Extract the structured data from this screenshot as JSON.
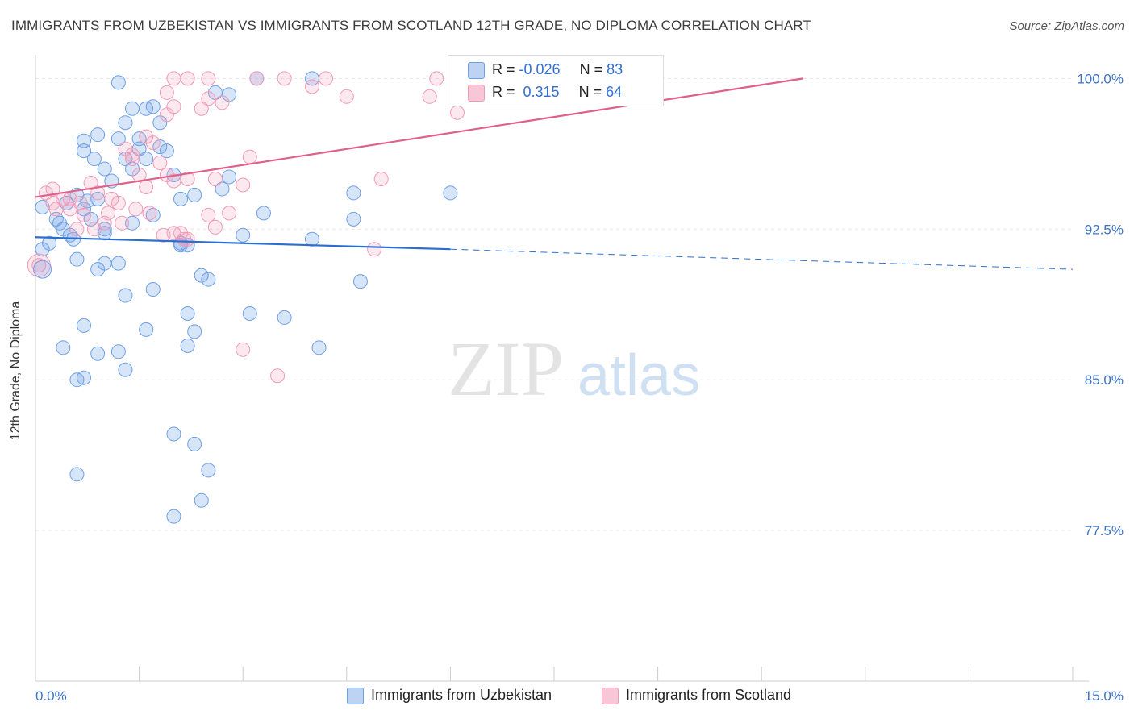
{
  "header": {
    "title": "IMMIGRANTS FROM UZBEKISTAN VS IMMIGRANTS FROM SCOTLAND 12TH GRADE, NO DIPLOMA CORRELATION CHART",
    "source": "Source: ZipAtlas.com"
  },
  "watermark": {
    "zip": "ZIP",
    "atlas": "atlas"
  },
  "legend": {
    "rows": [
      {
        "r_label": "R = ",
        "r_value": "-0.026",
        "n_label": "N = ",
        "n_value": "83"
      },
      {
        "r_label": "R = ",
        "r_value": " 0.315",
        "n_label": "N = ",
        "n_value": "64"
      }
    ]
  },
  "chart_data": {
    "type": "scatter",
    "xlabel": "",
    "ylabel": "12th Grade, No Diploma",
    "xlim": [
      0,
      15
    ],
    "ylim": [
      70,
      101.5
    ],
    "x_tick_labels": [
      "0.0%",
      "15.0%"
    ],
    "y_ticks": [
      77.5,
      85.0,
      92.5,
      100.0
    ],
    "y_tick_labels": [
      "77.5%",
      "85.0%",
      "92.5%",
      "100.0%"
    ],
    "grid": true,
    "legend_position": "top-center",
    "colors": {
      "uzbekistan": "#6fa0e6",
      "scotland": "#f09ab8",
      "uzbekistan_line": "#2a6fd0",
      "scotland_line": "#e0608a"
    },
    "series": [
      {
        "name": "Immigrants from Uzbekistan",
        "r": -0.026,
        "n": 83,
        "trend": {
          "x": [
            0,
            6.0
          ],
          "y": [
            92.1,
            91.5
          ],
          "dashed_to": [
            15,
            90.5
          ]
        },
        "points": [
          [
            0.1,
            93.6
          ],
          [
            0.2,
            91.8
          ],
          [
            0.3,
            93.0
          ],
          [
            0.4,
            92.5
          ],
          [
            0.5,
            92.2
          ],
          [
            0.6,
            94.2
          ],
          [
            0.7,
            93.5
          ],
          [
            0.8,
            93.0
          ],
          [
            0.9,
            94.0
          ],
          [
            1.0,
            92.5
          ],
          [
            0.1,
            91.5
          ],
          [
            0.35,
            92.8
          ],
          [
            0.45,
            93.8
          ],
          [
            0.55,
            92.0
          ],
          [
            0.75,
            93.9
          ],
          [
            0.85,
            96.0
          ],
          [
            1.0,
            95.5
          ],
          [
            1.1,
            94.9
          ],
          [
            1.2,
            97.0
          ],
          [
            1.3,
            96.0
          ],
          [
            1.4,
            95.5
          ],
          [
            1.5,
            96.5
          ],
          [
            1.6,
            96.0
          ],
          [
            1.7,
            98.6
          ],
          [
            1.8,
            96.6
          ],
          [
            1.9,
            96.4
          ],
          [
            2.0,
            95.2
          ],
          [
            2.1,
            94.0
          ],
          [
            1.3,
            97.8
          ],
          [
            1.4,
            98.5
          ],
          [
            1.5,
            97.0
          ],
          [
            1.2,
            99.8
          ],
          [
            1.6,
            98.5
          ],
          [
            2.3,
            94.2
          ],
          [
            0.7,
            96.9
          ],
          [
            0.7,
            96.4
          ],
          [
            0.9,
            97.2
          ],
          [
            1.8,
            97.8
          ],
          [
            2.6,
            99.3
          ],
          [
            2.8,
            99.2
          ],
          [
            3.2,
            100.0
          ],
          [
            4.0,
            100.0
          ],
          [
            2.7,
            94.5
          ],
          [
            2.8,
            95.1
          ],
          [
            3.3,
            93.3
          ],
          [
            4.6,
            94.3
          ],
          [
            6.0,
            94.3
          ],
          [
            3.0,
            92.2
          ],
          [
            4.0,
            92.0
          ],
          [
            4.6,
            93.0
          ],
          [
            1.0,
            92.3
          ],
          [
            1.4,
            92.8
          ],
          [
            1.7,
            93.2
          ],
          [
            2.1,
            91.8
          ],
          [
            2.1,
            91.7
          ],
          [
            2.2,
            91.7
          ],
          [
            0.6,
            91.0
          ],
          [
            0.9,
            90.5
          ],
          [
            1.0,
            90.8
          ],
          [
            1.2,
            90.8
          ],
          [
            2.4,
            90.2
          ],
          [
            2.5,
            90.0
          ],
          [
            4.7,
            89.9
          ],
          [
            1.3,
            89.2
          ],
          [
            1.7,
            89.5
          ],
          [
            2.2,
            88.3
          ],
          [
            3.1,
            88.3
          ],
          [
            3.6,
            88.1
          ],
          [
            0.7,
            87.7
          ],
          [
            1.6,
            87.5
          ],
          [
            2.3,
            87.4
          ],
          [
            0.4,
            86.6
          ],
          [
            0.9,
            86.3
          ],
          [
            1.2,
            86.4
          ],
          [
            2.2,
            86.7
          ],
          [
            4.1,
            86.6
          ],
          [
            1.3,
            85.5
          ],
          [
            0.6,
            85.0
          ],
          [
            0.7,
            85.1
          ],
          [
            2.0,
            82.3
          ],
          [
            2.3,
            81.8
          ],
          [
            0.6,
            80.3
          ],
          [
            2.5,
            80.5
          ],
          [
            2.4,
            79.0
          ],
          [
            2.0,
            78.2
          ]
        ]
      },
      {
        "name": "Immigrants from Scotland",
        "r": 0.315,
        "n": 64,
        "trend": {
          "x": [
            0,
            11.1
          ],
          "y": [
            94.1,
            100.0
          ]
        },
        "points": [
          [
            0.05,
            90.7
          ],
          [
            0.15,
            94.3
          ],
          [
            0.25,
            93.8
          ],
          [
            0.3,
            93.5
          ],
          [
            0.4,
            94.0
          ],
          [
            0.5,
            93.5
          ],
          [
            0.6,
            92.5
          ],
          [
            0.7,
            93.2
          ],
          [
            0.8,
            94.8
          ],
          [
            0.9,
            94.3
          ],
          [
            1.0,
            92.8
          ],
          [
            1.1,
            94.0
          ],
          [
            1.2,
            93.8
          ],
          [
            1.3,
            96.5
          ],
          [
            1.4,
            96.0
          ],
          [
            1.5,
            95.2
          ],
          [
            1.6,
            94.6
          ],
          [
            1.7,
            96.8
          ],
          [
            1.8,
            95.8
          ],
          [
            1.9,
            95.2
          ],
          [
            2.0,
            94.9
          ],
          [
            0.25,
            94.5
          ],
          [
            0.5,
            94.0
          ],
          [
            0.65,
            93.8
          ],
          [
            0.85,
            92.5
          ],
          [
            1.05,
            93.3
          ],
          [
            1.25,
            92.8
          ],
          [
            1.45,
            93.5
          ],
          [
            1.65,
            93.3
          ],
          [
            1.85,
            92.2
          ],
          [
            2.0,
            92.3
          ],
          [
            2.1,
            92.3
          ],
          [
            1.4,
            96.2
          ],
          [
            1.6,
            97.1
          ],
          [
            2.15,
            92.0
          ],
          [
            2.2,
            95.0
          ],
          [
            2.6,
            95.0
          ],
          [
            3.0,
            94.7
          ],
          [
            3.1,
            96.1
          ],
          [
            2.5,
            93.2
          ],
          [
            2.6,
            92.6
          ],
          [
            2.8,
            93.3
          ],
          [
            2.2,
            92.0
          ],
          [
            1.9,
            99.3
          ],
          [
            2.0,
            98.6
          ],
          [
            2.5,
            99.0
          ],
          [
            2.7,
            98.8
          ],
          [
            1.9,
            98.2
          ],
          [
            2.4,
            98.5
          ],
          [
            2.0,
            100.0
          ],
          [
            2.2,
            100.0
          ],
          [
            2.5,
            100.0
          ],
          [
            3.2,
            100.0
          ],
          [
            3.6,
            100.0
          ],
          [
            4.0,
            99.6
          ],
          [
            4.2,
            100.0
          ],
          [
            4.5,
            99.1
          ],
          [
            5.7,
            99.1
          ],
          [
            5.8,
            100.0
          ],
          [
            6.1,
            98.3
          ],
          [
            5.0,
            95.0
          ],
          [
            4.9,
            91.5
          ],
          [
            3.0,
            86.5
          ],
          [
            3.5,
            85.2
          ]
        ]
      }
    ]
  }
}
